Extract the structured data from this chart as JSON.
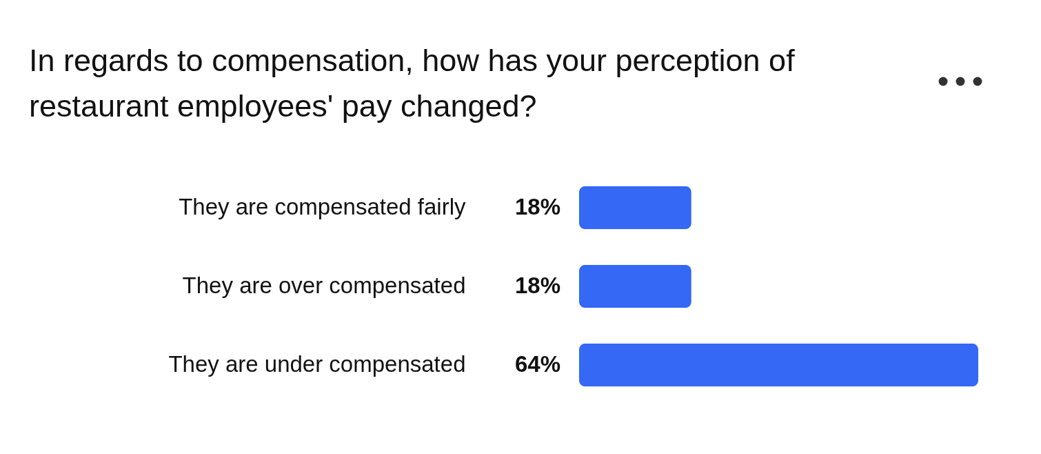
{
  "chart_data": {
    "type": "bar",
    "orientation": "horizontal",
    "title": "In regards to compensation, how has your perception of restaurant employees' pay changed?",
    "categories": [
      "They are compensated fairly",
      "They are over compensated",
      "They are under compensated"
    ],
    "values": [
      18,
      18,
      64
    ],
    "value_labels": [
      "18%",
      "18%",
      "64%"
    ],
    "color": "#3468f5"
  }
}
